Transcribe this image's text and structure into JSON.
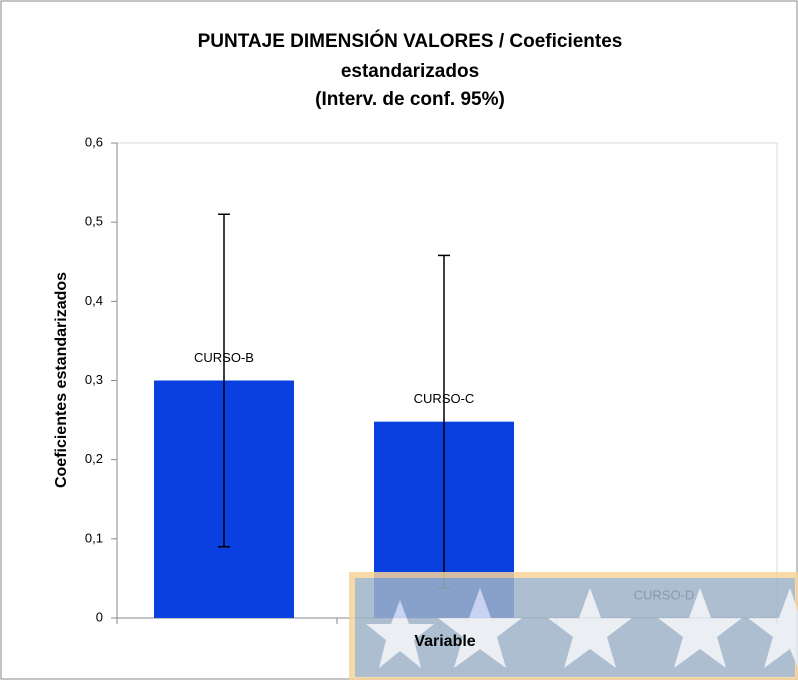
{
  "chart_data": {
    "type": "bar",
    "title": [
      "PUNTAJE DIMENSIÓN VALORES / Coeficientes",
      "estandarizados",
      "(Interv. de conf. 95%)"
    ],
    "x_label": "Variable",
    "y_label": "Coeficientes estandarizados",
    "categories": [
      "CURSO-B",
      "CURSO-C",
      "CURSO-D"
    ],
    "values": [
      0.3,
      0.248,
      0
    ],
    "errors": [
      0.21,
      0.21,
      0
    ],
    "color": "#0a3fe0",
    "ylim": [
      0,
      0.6
    ],
    "yticks": [
      0,
      {
        "value": 0.1,
        "label": "0,1"
      },
      {
        "value": 0.2,
        "label": "0,2"
      },
      {
        "value": 0.3,
        "label": "0,3"
      },
      {
        "value": 0.4,
        "label": "0,4"
      },
      {
        "value": 0.5,
        "label": "0,5"
      },
      {
        "value": 0.6,
        "label": "0,6"
      }
    ]
  }
}
